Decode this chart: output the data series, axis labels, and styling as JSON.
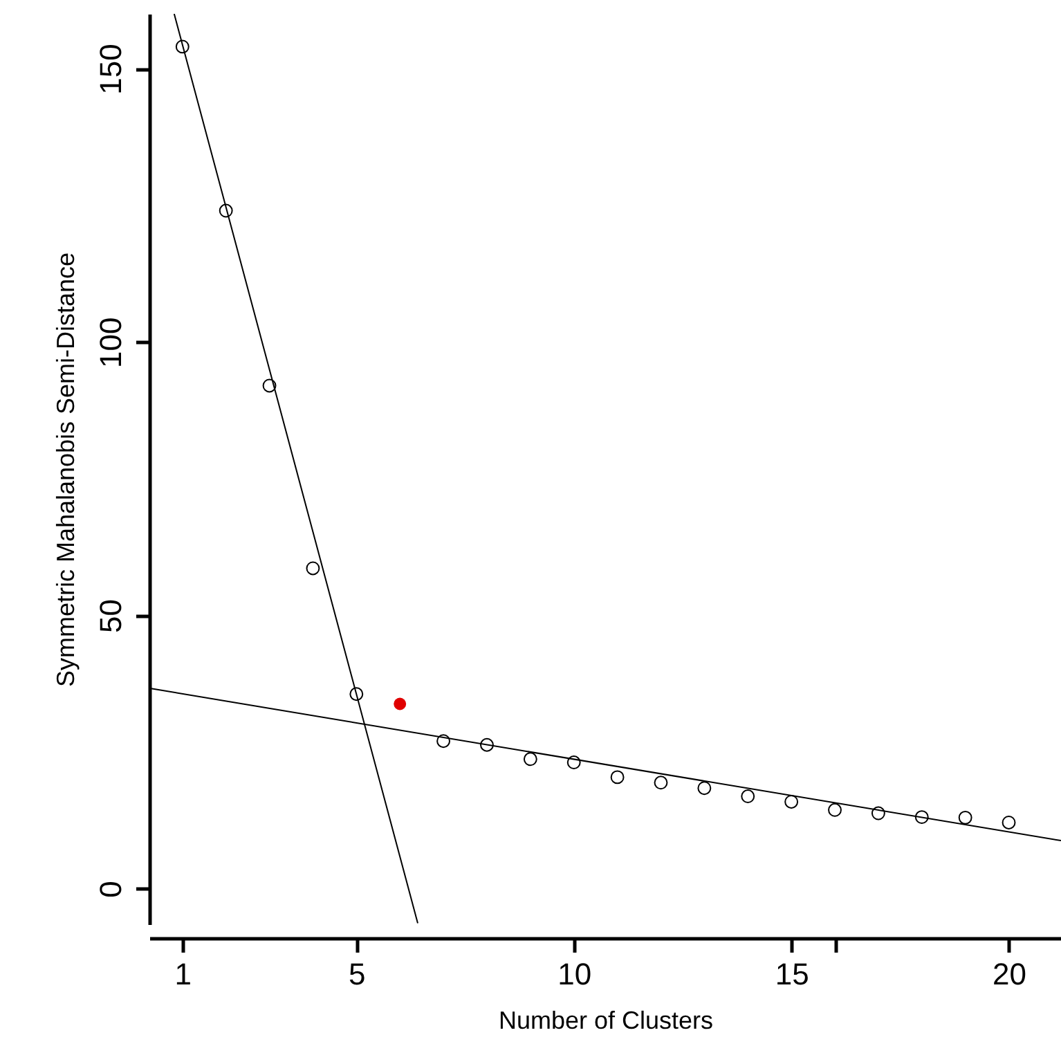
{
  "chart_data": {
    "type": "scatter",
    "xlabel": "Number of Clusters",
    "ylabel": "Symmetric Mahalanobis Semi-Distance",
    "xlim": [
      0.24,
      21.2
    ],
    "ylim": [
      -6.5,
      160
    ],
    "xticks": [
      1,
      5,
      10,
      15,
      {
        "value": 16,
        "label": null
      },
      20
    ],
    "yticks": [
      0,
      50,
      100,
      150
    ],
    "grid": false,
    "marker": "circle",
    "series": [
      {
        "color": "#000000",
        "x": [
          1,
          2,
          3,
          4,
          5,
          7,
          8,
          9,
          10,
          11,
          12,
          13,
          14,
          15,
          16,
          17,
          18,
          19,
          20
        ],
        "values": [
          154,
          124,
          92,
          58.6,
          35.6,
          27,
          26.3,
          23.7,
          23.1,
          20.4,
          19.4,
          18.4,
          16.9,
          15.9,
          14.4,
          13.8,
          13.1,
          13,
          12.1
        ]
      },
      {
        "color": "#e00000",
        "x": [
          6
        ],
        "values": [
          33.8
        ]
      },
      {
        "type": "line",
        "marker": "none",
        "color": "#000000",
        "x": [
          0.81,
          6.41
        ],
        "values": [
          160,
          -6.3
        ]
      },
      {
        "type": "line",
        "marker": "none",
        "color": "#000000",
        "x": [
          0.28,
          21.2
        ],
        "values": [
          36.6,
          8.8
        ]
      }
    ]
  }
}
